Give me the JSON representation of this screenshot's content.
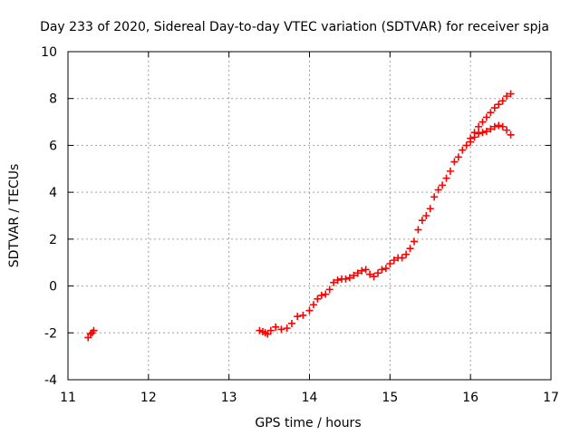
{
  "chart_data": {
    "type": "scatter",
    "title": "Day 233 of 2020, Sidereal Day-to-day VTEC variation (SDTVAR) for receiver spja",
    "xlabel": "GPS time / hours",
    "ylabel": "SDTVAR / TECUs",
    "xlim": [
      11,
      17
    ],
    "ylim": [
      -4,
      10
    ],
    "x_ticks": [
      "11",
      "12",
      "13",
      "14",
      "15",
      "16",
      "17"
    ],
    "y_ticks": [
      "-4",
      "-2",
      "0",
      "2",
      "4",
      "6",
      "8",
      "10"
    ],
    "grid": true,
    "legend": "none",
    "marker": "plus",
    "series_color": "#ff0000",
    "series": [
      {
        "points": [
          [
            11.25,
            -2.2
          ],
          [
            11.28,
            -2.05
          ],
          [
            11.3,
            -2.0
          ],
          [
            11.32,
            -1.9
          ],
          [
            13.38,
            -1.9
          ],
          [
            13.42,
            -1.95
          ],
          [
            13.45,
            -2.0
          ],
          [
            13.48,
            -2.05
          ],
          [
            13.52,
            -1.9
          ],
          [
            13.58,
            -1.75
          ],
          [
            13.65,
            -1.85
          ],
          [
            13.72,
            -1.8
          ],
          [
            13.78,
            -1.6
          ],
          [
            13.85,
            -1.3
          ],
          [
            13.92,
            -1.25
          ],
          [
            14.0,
            -1.05
          ],
          [
            14.05,
            -0.8
          ],
          [
            14.1,
            -0.55
          ],
          [
            14.15,
            -0.4
          ],
          [
            14.2,
            -0.35
          ],
          [
            14.25,
            -0.15
          ],
          [
            14.3,
            0.15
          ],
          [
            14.35,
            0.25
          ],
          [
            14.4,
            0.3
          ],
          [
            14.45,
            0.3
          ],
          [
            14.5,
            0.35
          ],
          [
            14.55,
            0.45
          ],
          [
            14.6,
            0.55
          ],
          [
            14.65,
            0.65
          ],
          [
            14.7,
            0.7
          ],
          [
            14.75,
            0.5
          ],
          [
            14.8,
            0.4
          ],
          [
            14.85,
            0.55
          ],
          [
            14.9,
            0.7
          ],
          [
            14.95,
            0.75
          ],
          [
            15.0,
            0.95
          ],
          [
            15.05,
            1.1
          ],
          [
            15.1,
            1.2
          ],
          [
            15.15,
            1.2
          ],
          [
            15.2,
            1.35
          ],
          [
            15.25,
            1.6
          ],
          [
            15.3,
            1.9
          ],
          [
            15.35,
            2.4
          ],
          [
            15.4,
            2.8
          ],
          [
            15.45,
            3.0
          ],
          [
            15.5,
            3.3
          ],
          [
            15.55,
            3.8
          ],
          [
            15.6,
            4.1
          ],
          [
            15.65,
            4.3
          ],
          [
            15.7,
            4.6
          ],
          [
            15.75,
            4.9
          ],
          [
            15.8,
            5.3
          ],
          [
            15.85,
            5.5
          ],
          [
            15.9,
            5.8
          ],
          [
            15.95,
            6.0
          ],
          [
            16.0,
            6.15
          ],
          [
            16.05,
            6.35
          ],
          [
            16.1,
            6.5
          ],
          [
            16.15,
            6.55
          ],
          [
            16.2,
            6.6
          ],
          [
            16.25,
            6.7
          ],
          [
            16.3,
            6.8
          ],
          [
            16.35,
            6.85
          ],
          [
            16.4,
            6.8
          ],
          [
            16.45,
            6.65
          ],
          [
            16.5,
            6.45
          ],
          [
            16.0,
            6.3
          ],
          [
            16.05,
            6.55
          ],
          [
            16.1,
            6.8
          ],
          [
            16.15,
            7.0
          ],
          [
            16.2,
            7.2
          ],
          [
            16.25,
            7.4
          ],
          [
            16.3,
            7.6
          ],
          [
            16.35,
            7.75
          ],
          [
            16.4,
            7.9
          ],
          [
            16.45,
            8.1
          ],
          [
            16.5,
            8.2
          ]
        ]
      }
    ]
  }
}
